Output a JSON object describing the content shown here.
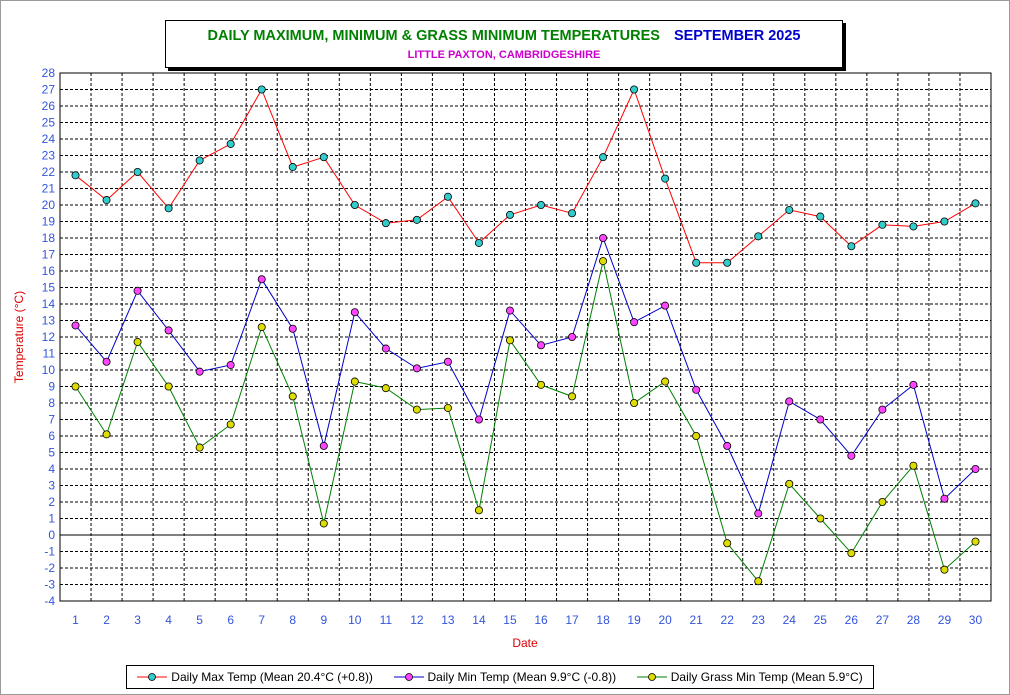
{
  "chart_data": {
    "type": "line",
    "title": "DAILY MAXIMUM, MINIMUM & GRASS MINIMUM TEMPERATURES",
    "title_period": "SEPTEMBER 2025",
    "subtitle": "LITTLE PAXTON, CAMBRIDGESHIRE",
    "xlabel": "Date",
    "ylabel": "Temperature (°C)",
    "ylim": [
      -4,
      28
    ],
    "grid": true,
    "x": [
      1,
      2,
      3,
      4,
      5,
      6,
      7,
      8,
      9,
      10,
      11,
      12,
      13,
      14,
      15,
      16,
      17,
      18,
      19,
      20,
      21,
      22,
      23,
      24,
      25,
      26,
      27,
      28,
      29,
      30
    ],
    "series": [
      {
        "name": "Daily Max Temp (Mean 20.4°C (+0.8))",
        "color": "#ff0000",
        "marker": "#33cccc",
        "values": [
          21.8,
          20.3,
          22.0,
          19.8,
          22.7,
          23.7,
          27.0,
          22.3,
          22.9,
          20.0,
          18.9,
          19.1,
          20.5,
          17.7,
          19.4,
          20.0,
          19.5,
          22.9,
          27.0,
          21.6,
          16.5,
          16.5,
          18.1,
          19.7,
          19.3,
          17.5,
          18.8,
          18.7,
          19.0,
          20.1
        ]
      },
      {
        "name": "Daily Min Temp (Mean 9.9°C (-0.8))",
        "color": "#0000cc",
        "marker": "#ff44ff",
        "values": [
          12.7,
          10.5,
          14.8,
          12.4,
          9.9,
          10.3,
          15.5,
          12.5,
          5.4,
          13.5,
          11.3,
          10.1,
          10.5,
          7.0,
          13.6,
          11.5,
          12.0,
          18.0,
          12.9,
          13.9,
          8.8,
          5.4,
          1.3,
          8.1,
          7.0,
          4.8,
          7.6,
          9.1,
          2.2,
          4.0
        ]
      },
      {
        "name": "Daily Grass Min Temp (Mean 5.9°C)",
        "color": "#008000",
        "marker": "#dddd00",
        "values": [
          9.0,
          6.1,
          11.7,
          9.0,
          5.3,
          6.7,
          12.6,
          8.4,
          0.7,
          9.3,
          8.9,
          7.6,
          7.7,
          1.5,
          11.8,
          9.1,
          8.4,
          16.6,
          8.0,
          9.3,
          6.0,
          -0.5,
          -2.8,
          3.1,
          1.0,
          -1.1,
          2.0,
          4.2,
          -2.1,
          -0.4
        ]
      }
    ]
  },
  "legend": [
    {
      "label": "Daily Max Temp (Mean 20.4°C (+0.8))",
      "line": "#ff0000",
      "marker": "#33cccc"
    },
    {
      "label": "Daily Min Temp (Mean 9.9°C (-0.8))",
      "line": "#0000cc",
      "marker": "#ff44ff"
    },
    {
      "label": "Daily Grass Min Temp (Mean 5.9°C)",
      "line": "#008000",
      "marker": "#dddd00"
    }
  ],
  "colors": {
    "tick_labels": "#3355dd",
    "axis_titles": "#dd0000"
  }
}
